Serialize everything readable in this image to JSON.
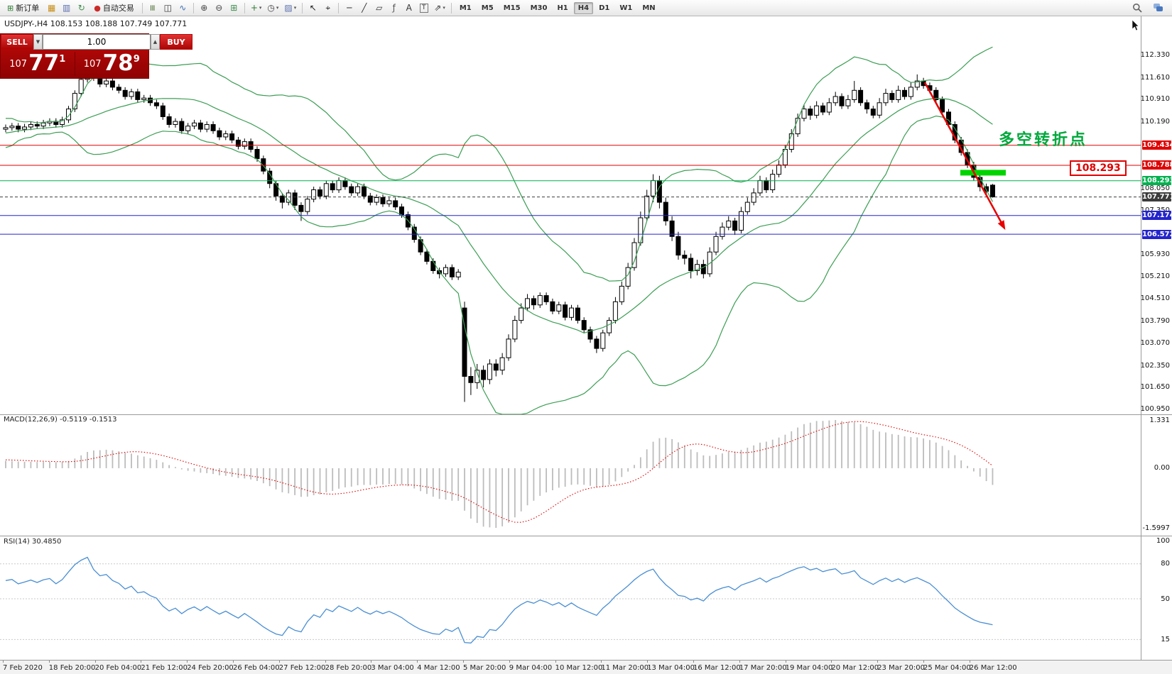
{
  "toolbar": {
    "items": [
      {
        "name": "new-order-button",
        "type": "labeled",
        "glyph": "⊞",
        "color": "#2e7d32",
        "label": "新订单"
      },
      {
        "name": "market-watch-icon",
        "type": "icon",
        "glyph": "▦",
        "color": "#c8901c"
      },
      {
        "name": "navigator-icon",
        "type": "icon",
        "glyph": "▥",
        "color": "#5a6fae"
      },
      {
        "name": "refresh-icon",
        "type": "icon",
        "glyph": "↻",
        "color": "#3f8e4f"
      },
      {
        "name": "auto-trading-button",
        "type": "labeled",
        "glyph": "●",
        "color": "#cc2929",
        "label": "自动交易"
      },
      {
        "type": "sep"
      },
      {
        "name": "bar-chart-icon",
        "type": "icon",
        "glyph": "≡",
        "rot": true,
        "color": "#4a6d2f"
      },
      {
        "name": "candlestick-chart-icon",
        "type": "icon",
        "glyph": "◫",
        "color": "#333333"
      },
      {
        "name": "line-chart-icon",
        "type": "icon",
        "glyph": "∿",
        "color": "#3f6fae"
      },
      {
        "type": "sep"
      },
      {
        "name": "zoom-in-icon",
        "type": "icon",
        "glyph": "⊕",
        "color": "#444444"
      },
      {
        "name": "zoom-out-icon",
        "type": "icon",
        "glyph": "⊖",
        "color": "#444444"
      },
      {
        "name": "tile-windows-icon",
        "type": "icon",
        "glyph": "⊞",
        "color": "#3f8e4f"
      },
      {
        "type": "sep"
      },
      {
        "name": "indicators-button",
        "type": "icon",
        "glyph": "+",
        "color": "#2e7d32",
        "dd": true
      },
      {
        "name": "periods-button",
        "type": "icon",
        "glyph": "◷",
        "color": "#444444",
        "dd": true
      },
      {
        "name": "templates-button",
        "type": "icon",
        "glyph": "▨",
        "color": "#5a6fae",
        "dd": true
      },
      {
        "type": "sep"
      },
      {
        "name": "cursor-icon",
        "type": "icon",
        "glyph": "↖",
        "color": "#222222"
      },
      {
        "name": "crosshair-icon",
        "type": "icon",
        "glyph": "⌖",
        "color": "#222222"
      },
      {
        "type": "sep"
      },
      {
        "name": "horizontal-line-icon",
        "type": "icon",
        "glyph": "─",
        "color": "#333333"
      },
      {
        "name": "trendline-icon",
        "type": "icon",
        "glyph": "╱",
        "color": "#333333"
      },
      {
        "name": "channel-icon",
        "type": "icon",
        "glyph": "▱",
        "color": "#333333"
      },
      {
        "name": "fibonacci-icon",
        "type": "icon",
        "glyph": "ƒ",
        "color": "#555555"
      },
      {
        "name": "text-tool-icon",
        "type": "icon",
        "glyph": "A",
        "color": "#333333"
      },
      {
        "name": "label-tool-icon",
        "type": "icon",
        "glyph": "T",
        "color": "#333333",
        "boxed": true
      },
      {
        "name": "shapes-icon",
        "type": "icon",
        "glyph": "⇗",
        "color": "#333333",
        "dd": true
      },
      {
        "type": "sep"
      }
    ],
    "timeframes": [
      "M1",
      "M5",
      "M15",
      "M30",
      "H1",
      "H4",
      "D1",
      "W1",
      "MN"
    ],
    "active_timeframe": "H4"
  },
  "trade_panel": {
    "sell_label": "SELL",
    "buy_label": "BUY",
    "volume": "1.00",
    "vol_down_glyph": "▼",
    "vol_up_glyph": "▲",
    "sell_price_small": "107",
    "sell_price_big": "77",
    "sell_price_sup": "1",
    "buy_price_small": "107",
    "buy_price_big": "78",
    "buy_price_sup": "9",
    "color": "#b80404"
  },
  "chart": {
    "title_line": "USDJPY-,H4  108.153 108.188 107.749 107.771"
  },
  "chart_data": {
    "type": "candlestick",
    "symbol": "USDJPY-",
    "timeframe": "H4",
    "ylim": [
      100.78,
      113.51
    ],
    "bollinger": {
      "period": 20,
      "deviation": 2,
      "color": "#3c9e54"
    },
    "warmup_closes": [
      109.1,
      109.4,
      109.2,
      109.5,
      109.7,
      109.55,
      109.8,
      109.9,
      109.75,
      109.85,
      110.0,
      109.9,
      110.05,
      109.95,
      110.1,
      110.0,
      109.9,
      110.0,
      109.95,
      110.0
    ],
    "ohlc": [
      [
        109.95,
        110.1,
        109.85,
        110.0
      ],
      [
        110.0,
        110.15,
        109.9,
        110.05
      ],
      [
        110.05,
        110.15,
        109.85,
        109.95
      ],
      [
        109.95,
        110.12,
        109.85,
        110.02
      ],
      [
        110.02,
        110.2,
        109.92,
        110.1
      ],
      [
        110.1,
        110.2,
        109.95,
        110.05
      ],
      [
        110.05,
        110.25,
        109.95,
        110.15
      ],
      [
        110.15,
        110.3,
        110.05,
        110.2
      ],
      [
        110.2,
        110.3,
        110.0,
        110.1
      ],
      [
        110.1,
        110.35,
        110.0,
        110.25
      ],
      [
        110.25,
        110.7,
        110.15,
        110.6
      ],
      [
        110.6,
        111.2,
        110.5,
        111.1
      ],
      [
        111.1,
        111.65,
        111.0,
        111.55
      ],
      [
        111.55,
        112.22,
        111.45,
        111.95
      ],
      [
        111.95,
        112.05,
        111.5,
        111.6
      ],
      [
        111.6,
        111.7,
        111.3,
        111.4
      ],
      [
        111.4,
        111.6,
        111.3,
        111.5
      ],
      [
        111.5,
        111.6,
        111.2,
        111.3
      ],
      [
        111.3,
        111.4,
        111.1,
        111.2
      ],
      [
        111.2,
        111.3,
        110.9,
        111.0
      ],
      [
        111.0,
        111.25,
        110.9,
        111.15
      ],
      [
        111.15,
        111.25,
        110.8,
        110.9
      ],
      [
        110.9,
        111.05,
        110.8,
        110.95
      ],
      [
        110.95,
        111.05,
        110.7,
        110.8
      ],
      [
        110.8,
        110.9,
        110.6,
        110.7
      ],
      [
        110.7,
        110.8,
        110.25,
        110.35
      ],
      [
        110.35,
        110.45,
        110.0,
        110.1
      ],
      [
        110.1,
        110.3,
        110.0,
        110.2
      ],
      [
        110.2,
        110.3,
        109.8,
        109.9
      ],
      [
        109.9,
        110.15,
        109.8,
        110.05
      ],
      [
        110.05,
        110.25,
        109.95,
        110.15
      ],
      [
        110.15,
        110.25,
        109.85,
        109.95
      ],
      [
        109.95,
        110.2,
        109.85,
        110.1
      ],
      [
        110.1,
        110.2,
        109.8,
        109.9
      ],
      [
        109.9,
        110.0,
        109.6,
        109.7
      ],
      [
        109.7,
        109.9,
        109.6,
        109.8
      ],
      [
        109.8,
        109.9,
        109.5,
        109.6
      ],
      [
        109.6,
        109.7,
        109.3,
        109.4
      ],
      [
        109.4,
        109.65,
        109.3,
        109.55
      ],
      [
        109.55,
        109.65,
        109.2,
        109.3
      ],
      [
        109.3,
        109.4,
        108.9,
        109.0
      ],
      [
        109.0,
        109.1,
        108.5,
        108.6
      ],
      [
        108.6,
        108.7,
        108.05,
        108.2
      ],
      [
        108.2,
        108.3,
        107.65,
        107.8
      ],
      [
        107.8,
        107.9,
        107.4,
        107.6
      ],
      [
        107.6,
        108.0,
        107.5,
        107.9
      ],
      [
        107.9,
        108.0,
        107.35,
        107.5
      ],
      [
        107.5,
        107.6,
        107.0,
        107.3
      ],
      [
        107.3,
        107.8,
        107.2,
        107.7
      ],
      [
        107.7,
        108.1,
        107.6,
        108.0
      ],
      [
        108.0,
        108.1,
        107.7,
        107.8
      ],
      [
        107.8,
        108.3,
        107.7,
        108.2
      ],
      [
        108.2,
        108.3,
        107.9,
        108.0
      ],
      [
        108.0,
        108.4,
        107.9,
        108.3
      ],
      [
        108.3,
        108.4,
        108.0,
        108.1
      ],
      [
        108.1,
        108.2,
        107.8,
        107.9
      ],
      [
        107.9,
        108.2,
        107.8,
        108.1
      ],
      [
        108.1,
        108.2,
        107.7,
        107.8
      ],
      [
        107.8,
        107.9,
        107.5,
        107.6
      ],
      [
        107.6,
        107.85,
        107.5,
        107.75
      ],
      [
        107.75,
        107.85,
        107.45,
        107.55
      ],
      [
        107.55,
        107.75,
        107.45,
        107.65
      ],
      [
        107.65,
        107.75,
        107.35,
        107.45
      ],
      [
        107.45,
        107.55,
        107.1,
        107.2
      ],
      [
        107.2,
        107.3,
        106.7,
        106.8
      ],
      [
        106.8,
        106.9,
        106.3,
        106.4
      ],
      [
        106.4,
        106.5,
        105.9,
        106.0
      ],
      [
        106.0,
        106.1,
        105.6,
        105.7
      ],
      [
        105.7,
        105.8,
        105.3,
        105.4
      ],
      [
        105.4,
        105.5,
        105.15,
        105.3
      ],
      [
        105.3,
        105.6,
        105.2,
        105.5
      ],
      [
        105.5,
        105.6,
        105.1,
        105.2
      ],
      [
        105.2,
        105.45,
        105.1,
        105.35
      ],
      [
        104.2,
        104.4,
        101.18,
        102.0
      ],
      [
        102.0,
        102.3,
        101.4,
        101.8
      ],
      [
        101.8,
        102.4,
        101.6,
        102.2
      ],
      [
        102.2,
        102.35,
        101.65,
        101.9
      ],
      [
        101.9,
        102.55,
        101.75,
        102.4
      ],
      [
        102.4,
        102.55,
        102.0,
        102.2
      ],
      [
        102.2,
        102.75,
        102.05,
        102.6
      ],
      [
        102.6,
        103.35,
        102.5,
        103.2
      ],
      [
        103.2,
        103.95,
        103.1,
        103.8
      ],
      [
        103.8,
        104.35,
        103.7,
        104.2
      ],
      [
        104.2,
        104.65,
        104.1,
        104.5
      ],
      [
        104.5,
        104.6,
        104.15,
        104.3
      ],
      [
        104.3,
        104.7,
        104.2,
        104.6
      ],
      [
        104.6,
        104.7,
        104.3,
        104.4
      ],
      [
        104.4,
        104.5,
        104.0,
        104.1
      ],
      [
        104.1,
        104.4,
        104.0,
        104.3
      ],
      [
        104.3,
        104.4,
        103.8,
        103.9
      ],
      [
        103.9,
        104.3,
        103.8,
        104.2
      ],
      [
        104.2,
        104.3,
        103.7,
        103.8
      ],
      [
        103.8,
        103.9,
        103.4,
        103.5
      ],
      [
        103.5,
        103.6,
        103.08,
        103.2
      ],
      [
        103.2,
        103.3,
        102.75,
        102.9
      ],
      [
        102.9,
        103.5,
        102.8,
        103.4
      ],
      [
        103.4,
        103.9,
        103.3,
        103.8
      ],
      [
        103.8,
        104.55,
        103.7,
        104.4
      ],
      [
        104.4,
        105.05,
        104.3,
        104.9
      ],
      [
        104.9,
        105.65,
        104.8,
        105.5
      ],
      [
        105.5,
        106.45,
        105.4,
        106.3
      ],
      [
        106.3,
        107.3,
        106.2,
        107.1
      ],
      [
        107.1,
        108.0,
        107.0,
        107.8
      ],
      [
        107.8,
        108.5,
        107.6,
        108.3
      ],
      [
        108.3,
        108.45,
        107.4,
        107.6
      ],
      [
        107.6,
        107.75,
        106.85,
        107.0
      ],
      [
        107.0,
        107.15,
        106.35,
        106.5
      ],
      [
        106.5,
        106.65,
        105.75,
        105.9
      ],
      [
        105.9,
        106.05,
        105.6,
        105.8
      ],
      [
        105.8,
        105.95,
        105.15,
        105.4
      ],
      [
        105.4,
        105.75,
        105.25,
        105.6
      ],
      [
        105.6,
        105.75,
        105.15,
        105.3
      ],
      [
        105.3,
        106.15,
        105.2,
        106.0
      ],
      [
        106.0,
        106.65,
        105.9,
        106.5
      ],
      [
        106.5,
        106.95,
        106.4,
        106.8
      ],
      [
        106.8,
        107.15,
        106.7,
        107.0
      ],
      [
        107.0,
        107.1,
        106.55,
        106.7
      ],
      [
        106.7,
        107.45,
        106.6,
        107.3
      ],
      [
        107.3,
        107.75,
        107.2,
        107.6
      ],
      [
        107.6,
        108.05,
        107.5,
        107.9
      ],
      [
        107.9,
        108.45,
        107.8,
        108.3
      ],
      [
        108.3,
        108.4,
        107.9,
        108.0
      ],
      [
        108.0,
        108.65,
        107.9,
        108.5
      ],
      [
        108.5,
        108.95,
        108.4,
        108.8
      ],
      [
        108.8,
        109.45,
        108.7,
        109.3
      ],
      [
        109.3,
        109.95,
        109.2,
        109.8
      ],
      [
        109.8,
        110.45,
        109.7,
        110.3
      ],
      [
        110.3,
        110.75,
        110.2,
        110.6
      ],
      [
        110.6,
        110.7,
        110.25,
        110.4
      ],
      [
        110.4,
        110.85,
        110.3,
        110.7
      ],
      [
        110.7,
        110.8,
        110.4,
        110.5
      ],
      [
        110.5,
        110.95,
        110.4,
        110.8
      ],
      [
        110.8,
        111.15,
        110.7,
        111.0
      ],
      [
        111.0,
        111.1,
        110.6,
        110.7
      ],
      [
        110.7,
        111.05,
        110.6,
        110.9
      ],
      [
        110.9,
        111.5,
        110.8,
        111.2
      ],
      [
        111.2,
        111.3,
        110.7,
        110.8
      ],
      [
        110.8,
        110.9,
        110.45,
        110.6
      ],
      [
        110.6,
        110.7,
        110.3,
        110.4
      ],
      [
        110.4,
        110.95,
        110.3,
        110.8
      ],
      [
        110.8,
        111.25,
        110.7,
        111.1
      ],
      [
        111.1,
        111.2,
        110.8,
        110.9
      ],
      [
        110.9,
        111.35,
        110.8,
        111.2
      ],
      [
        111.2,
        111.3,
        110.9,
        111.0
      ],
      [
        111.0,
        111.45,
        110.9,
        111.3
      ],
      [
        111.3,
        111.71,
        111.2,
        111.5
      ],
      [
        111.5,
        111.6,
        111.25,
        111.35
      ],
      [
        111.35,
        111.45,
        111.1,
        111.2
      ],
      [
        111.2,
        111.3,
        110.8,
        110.9
      ],
      [
        110.9,
        111.0,
        110.4,
        110.5
      ],
      [
        110.5,
        110.6,
        110.0,
        110.1
      ],
      [
        110.1,
        110.2,
        109.5,
        109.6
      ],
      [
        109.6,
        109.7,
        109.1,
        109.2
      ],
      [
        109.2,
        109.3,
        108.7,
        108.8
      ],
      [
        108.8,
        108.9,
        108.3,
        108.4
      ],
      [
        108.4,
        108.55,
        107.95,
        108.1
      ],
      [
        108.1,
        108.2,
        107.8,
        107.95
      ],
      [
        108.15,
        108.19,
        107.75,
        107.77
      ]
    ],
    "levels": [
      {
        "value": 109.434,
        "display": "109.434",
        "color": "#e00000",
        "style": "solid",
        "name": "resistance-line-1"
      },
      {
        "value": 108.788,
        "display": "108.788",
        "color": "#e00000",
        "style": "solid",
        "name": "resistance-line-2"
      },
      {
        "value": 108.293,
        "display": "108.293",
        "color": "#00b14f",
        "style": "solid",
        "name": "pivot-line"
      },
      {
        "value": 107.771,
        "display": "107.771",
        "color": "#3c3c3c",
        "style": "dashed",
        "name": "current-price-line"
      },
      {
        "value": 107.174,
        "display": "107.174",
        "color": "#2424cc",
        "style": "solid",
        "name": "support-line-1"
      },
      {
        "value": 106.572,
        "display": "106.572",
        "color": "#2424cc",
        "style": "solid",
        "name": "support-line-2"
      }
    ],
    "price_axis_labels": [
      "112.330",
      "111.610",
      "110.910",
      "110.190",
      "108.050",
      "107.350",
      "105.930",
      "105.210",
      "104.510",
      "103.790",
      "103.070",
      "102.350",
      "101.650",
      "100.950"
    ],
    "time_axis_labels": [
      "7 Feb 2020",
      "18 Feb 20:00",
      "20 Feb 04:00",
      "21 Feb 12:00",
      "24 Feb 20:00",
      "26 Feb 04:00",
      "27 Feb 12:00",
      "28 Feb 20:00",
      "3 Mar 04:00",
      "4 Mar 12:00",
      "5 Mar 20:00",
      "9 Mar 04:00",
      "10 Mar 12:00",
      "11 Mar 20:00",
      "13 Mar 04:00",
      "16 Mar 12:00",
      "17 Mar 20:00",
      "19 Mar 04:00",
      "20 Mar 12:00",
      "23 Mar 20:00",
      "25 Mar 04:00",
      "26 Mar 12:00"
    ],
    "macd": {
      "type": "bar+line",
      "label": "MACD(12,26,9)",
      "current": "-0.5119 -0.1513",
      "scale_labels": [
        "1.331",
        "0.00",
        "-1.5997"
      ],
      "hist_color": "#bcbcbc",
      "signal_color": "#e00000"
    },
    "rsi": {
      "type": "line",
      "label": "RSI(14)",
      "current": "30.4850",
      "scale_labels": [
        "100",
        "80",
        "50",
        "15"
      ],
      "scale_values": [
        100,
        80,
        50,
        15
      ],
      "color": "#4a8fd4"
    },
    "annotations": {
      "text": {
        "value": "多空转折点",
        "color": "#00a83c"
      },
      "callout": {
        "value": "108.293",
        "color": "#e00000"
      },
      "arrow": {
        "from_price": 111.45,
        "to_price": 106.85,
        "color": "#e80000"
      },
      "highlight_bar": {
        "price": 108.55,
        "color": "#00d400"
      }
    }
  }
}
